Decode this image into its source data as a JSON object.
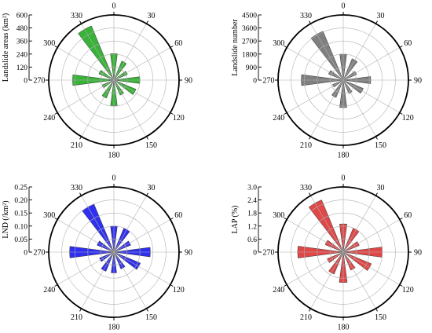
{
  "chart_data": [
    {
      "type": "polar-bar",
      "ylabel": "Landslide areas (km²)",
      "rlim": [
        0,
        600
      ],
      "r_ticks": [
        "0",
        "120",
        "240",
        "360",
        "480",
        "600"
      ],
      "angle_labels": [
        "0",
        "30",
        "60",
        "90",
        "120",
        "150",
        "180",
        "210",
        "240",
        "270",
        "300",
        "330"
      ],
      "directions": [
        0,
        30,
        60,
        90,
        120,
        150,
        180,
        210,
        240,
        270,
        300,
        330
      ],
      "values": [
        245,
        190,
        135,
        240,
        220,
        150,
        235,
        180,
        115,
        380,
        150,
        540
      ],
      "color": "#38b338"
    },
    {
      "type": "polar-bar",
      "ylabel": "Landslide number",
      "rlim": [
        0,
        4500
      ],
      "r_ticks": [
        "0",
        "900",
        "1800",
        "2700",
        "3600",
        "4500"
      ],
      "angle_labels": [
        "0",
        "30",
        "60",
        "90",
        "120",
        "150",
        "180",
        "210",
        "240",
        "270",
        "300",
        "330"
      ],
      "directions": [
        0,
        30,
        60,
        90,
        120,
        150,
        180,
        210,
        240,
        270,
        300,
        330
      ],
      "values": [
        1800,
        1600,
        1000,
        1900,
        1500,
        1000,
        1900,
        1300,
        800,
        2900,
        1100,
        3650
      ],
      "color": "#808080"
    },
    {
      "type": "polar-bar",
      "ylabel": "LND (/km²)",
      "rlim": [
        0,
        0.25
      ],
      "r_ticks": [
        "0",
        "0.05",
        "0.10",
        "0.15",
        "0.20",
        "0.25"
      ],
      "angle_labels": [
        "0",
        "30",
        "60",
        "90",
        "120",
        "150",
        "180",
        "210",
        "240",
        "270",
        "300",
        "330"
      ],
      "directions": [
        0,
        30,
        60,
        90,
        120,
        150,
        180,
        210,
        240,
        270,
        300,
        330
      ],
      "values": [
        0.1,
        0.1,
        0.07,
        0.14,
        0.11,
        0.07,
        0.08,
        0.08,
        0.06,
        0.17,
        0.07,
        0.2
      ],
      "color": "#2f2ff0"
    },
    {
      "type": "polar-bar",
      "ylabel": "LAP (%)",
      "rlim": [
        0,
        3.0
      ],
      "r_ticks": [
        "0",
        "0.6",
        "1.2",
        "1.8",
        "2.4",
        "3.0"
      ],
      "angle_labels": [
        "0",
        "30",
        "60",
        "90",
        "120",
        "150",
        "180",
        "210",
        "240",
        "270",
        "300",
        "330"
      ],
      "directions": [
        0,
        30,
        60,
        90,
        120,
        150,
        180,
        210,
        240,
        270,
        300,
        330
      ],
      "values": [
        1.3,
        1.2,
        0.8,
        1.8,
        1.4,
        0.9,
        1.4,
        1.1,
        0.8,
        2.1,
        0.9,
        2.6
      ],
      "color": "#e04848"
    }
  ]
}
